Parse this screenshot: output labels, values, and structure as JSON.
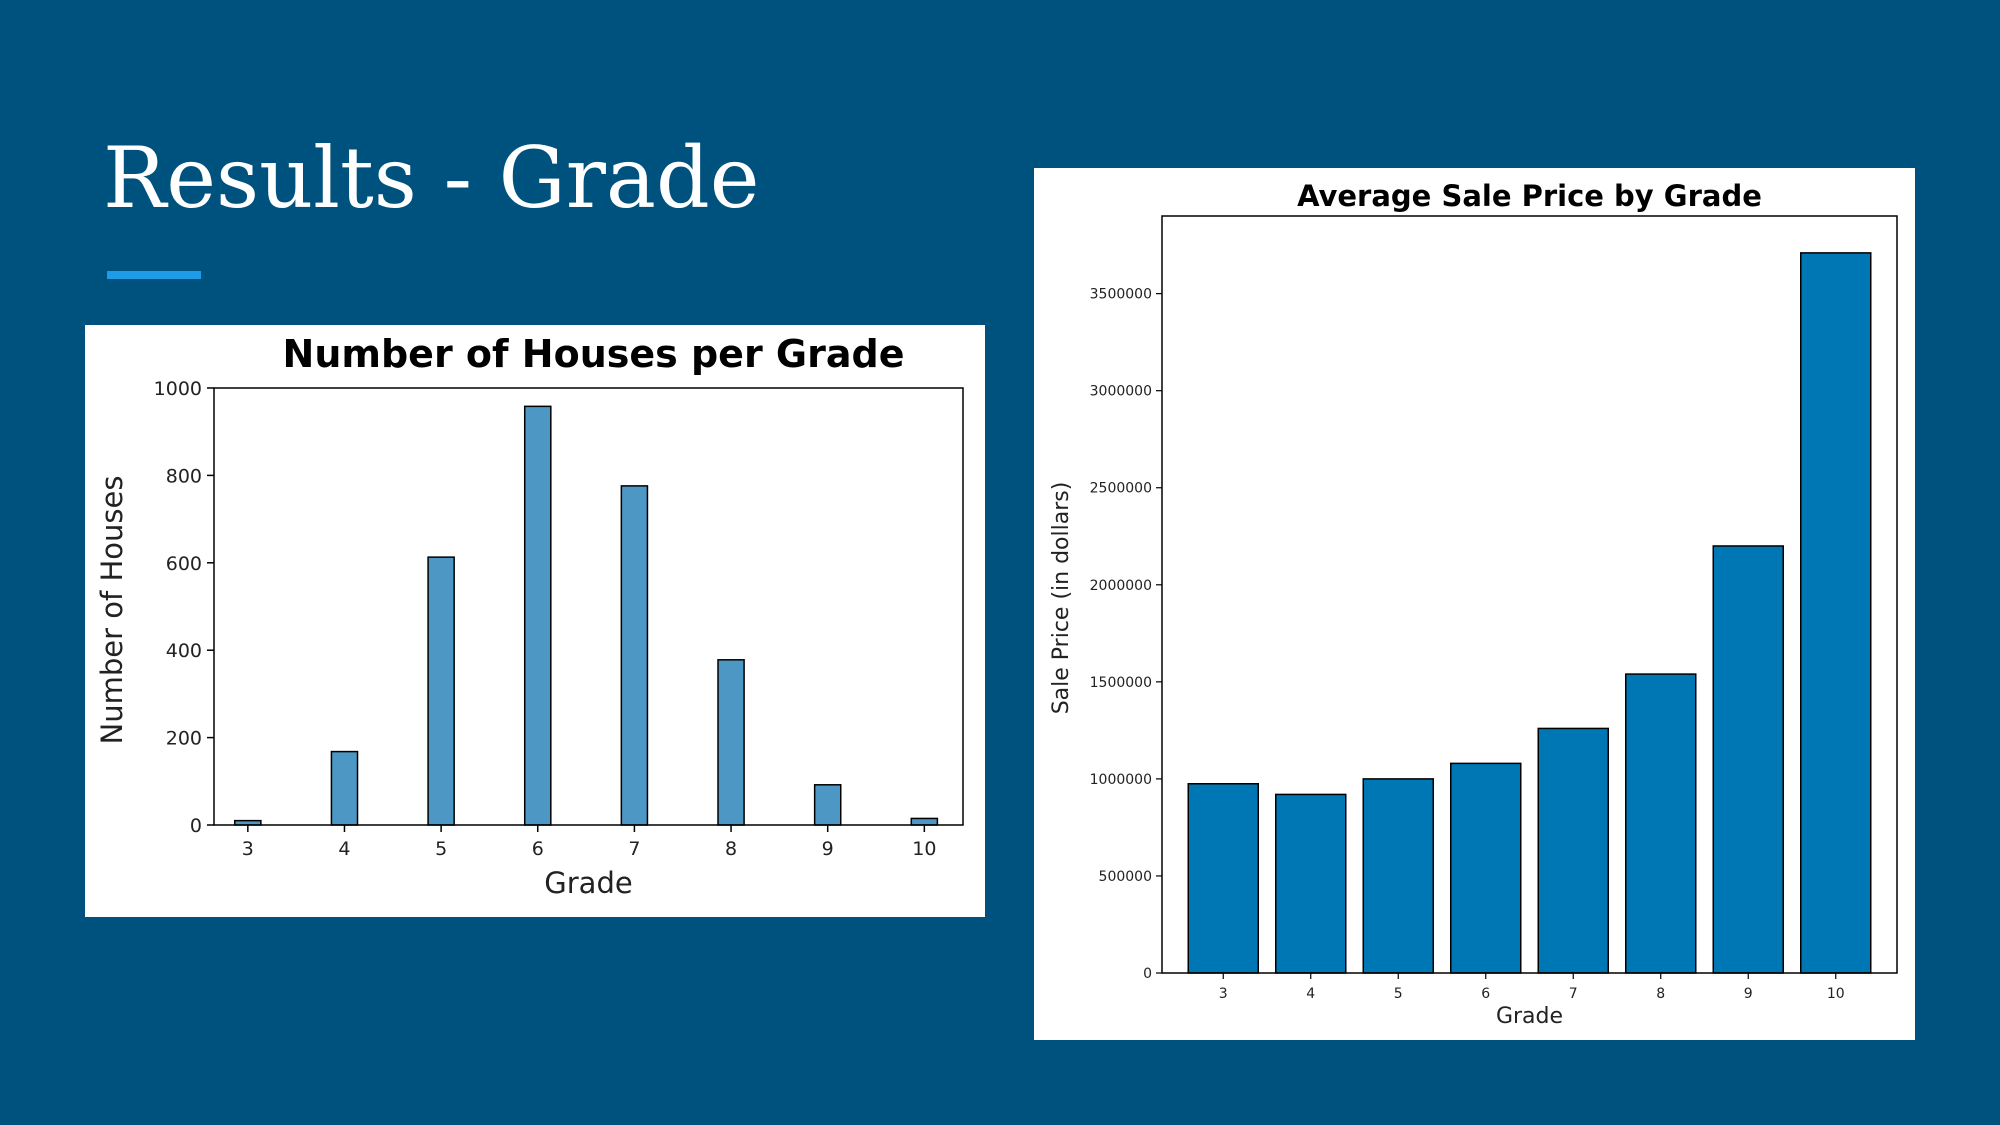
{
  "slide": {
    "title": "Results - Grade",
    "background": "#00527e",
    "accent_color": "#1e9be6"
  },
  "chart_data": [
    {
      "type": "bar",
      "title": "Number of Houses per Grade",
      "xlabel": "Grade",
      "ylabel": "Number of Houses",
      "x": [
        3,
        4,
        5,
        6,
        7,
        8,
        9,
        10
      ],
      "values": [
        10,
        168,
        613,
        958,
        776,
        378,
        92,
        15
      ],
      "xticks": [
        "3",
        "4",
        "5",
        "6",
        "7",
        "8",
        "9",
        "10"
      ],
      "yticks": [
        0,
        200,
        400,
        600,
        800,
        1000
      ],
      "ylim": [
        0,
        1000
      ],
      "xlim": [
        2.65,
        10.4
      ],
      "bar_width": 0.27,
      "color": "#4c97c4",
      "grid": false
    },
    {
      "type": "bar",
      "title": "Average Sale Price by Grade",
      "xlabel": "Grade",
      "ylabel": "Sale Price (in dollars)",
      "categories": [
        "3",
        "4",
        "5",
        "6",
        "7",
        "8",
        "9",
        "10"
      ],
      "values": [
        975000,
        920000,
        1000000,
        1080000,
        1260000,
        1540000,
        2200000,
        3710000
      ],
      "yticks": [
        0,
        500000,
        1000000,
        1500000,
        2000000,
        2500000,
        3000000,
        3500000
      ],
      "ylim": [
        0,
        3900000
      ],
      "color": "#0077b5",
      "grid": false
    }
  ]
}
